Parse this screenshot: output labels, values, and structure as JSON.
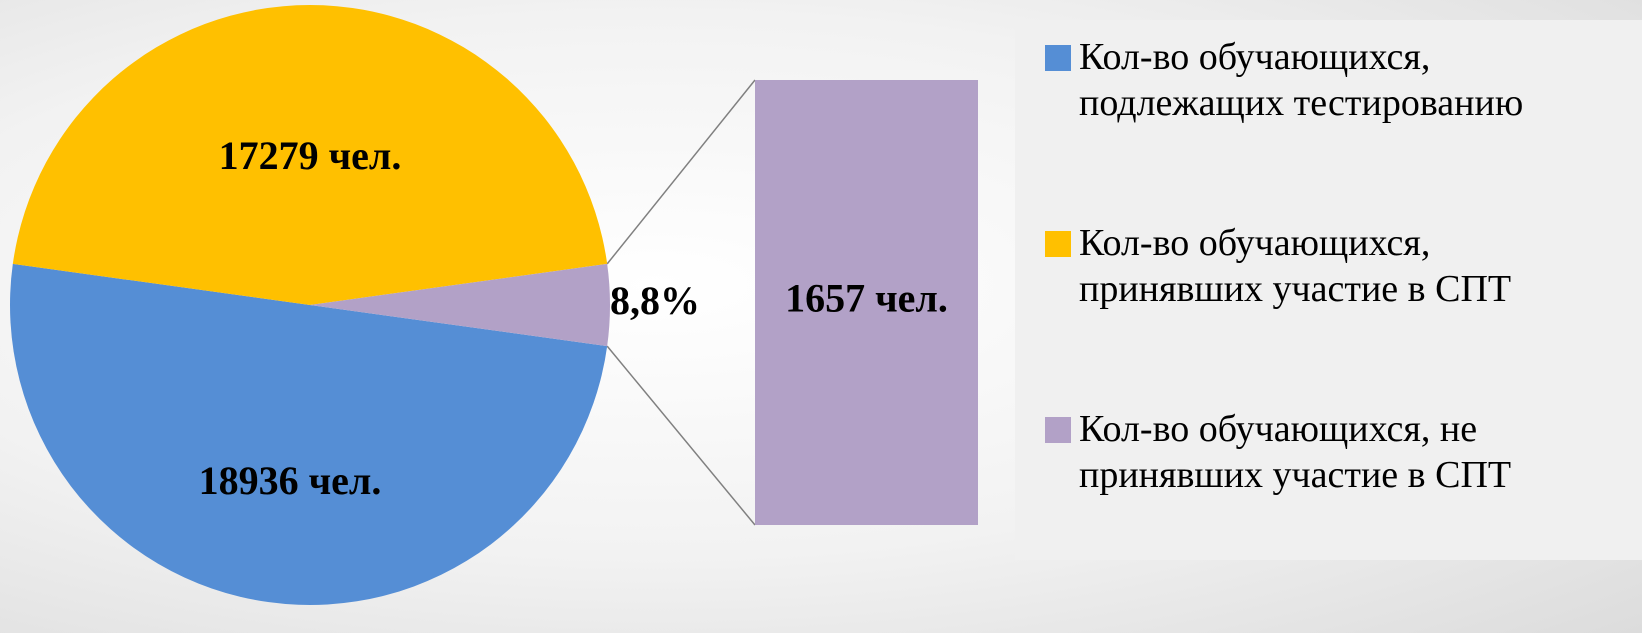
{
  "chart_data": {
    "type": "pie",
    "categories": [
      "Кол-во обучающихся, подлежащих тестированию",
      "Кол-во обучающихся, принявших участие в СПТ",
      "Кол-во обучающихся, не принявших участие в СПТ"
    ],
    "values": [
      18936,
      17279,
      1657
    ],
    "value_labels": [
      "18936 чел.",
      "17279 чел.",
      "1657 чел."
    ],
    "colors": [
      "#558ed5",
      "#ffc000",
      "#b2a1c7"
    ],
    "annotation": "8,8%",
    "legend": "right"
  }
}
